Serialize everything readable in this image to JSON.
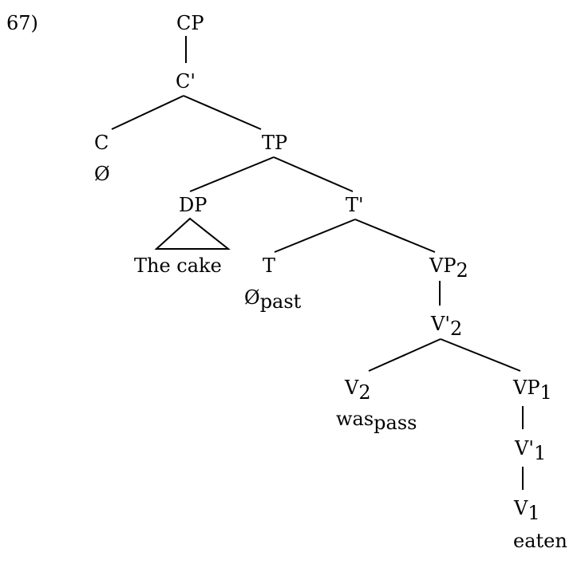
{
  "example_number": "67)",
  "nodes": {
    "cp": "CP",
    "c_bar": "C'",
    "c": "C",
    "c_null": "Ø",
    "tp": "TP",
    "dp": "DP",
    "dp_text": "The cake",
    "t_bar": "T'",
    "t": "T",
    "t_null": "Ø",
    "t_null_sub": "past",
    "vp2": "VP",
    "vp2_sub": "2",
    "v2_bar": "V'",
    "v2_bar_sub": "2",
    "v2": "V",
    "v2_sub": "2",
    "v2_word": "was",
    "v2_word_sub": "pass",
    "vp1": "VP",
    "vp1_sub": "1",
    "v1_bar": "V'",
    "v1_bar_sub": "1",
    "v1": "V",
    "v1_sub": "1",
    "v1_word": "eaten"
  }
}
